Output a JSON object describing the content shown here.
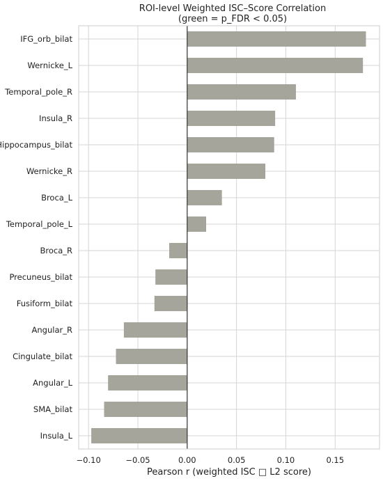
{
  "chart_data": {
    "type": "bar",
    "orientation": "horizontal",
    "title": "ROI-level Weighted ISC–Score Correlation",
    "subtitle": "(green = p_FDR < 0.05)",
    "xlabel": "Pearson r (weighted ISC □ L2 score)",
    "ylabel": "",
    "xlim": [
      -0.11,
      0.195
    ],
    "xticks": [
      -0.1,
      -0.05,
      0.0,
      0.05,
      0.1,
      0.15
    ],
    "xtick_labels": [
      "−0.10",
      "−0.05",
      "0.00",
      "0.05",
      "0.10",
      "0.15"
    ],
    "grid": true,
    "categories": [
      "IFG_orb_bilat",
      "Wernicke_L",
      "Temporal_pole_R",
      "Insula_R",
      "Hippocampus_bilat",
      "Wernicke_R",
      "Broca_L",
      "Temporal_pole_L",
      "Broca_R",
      "Precuneus_bilat",
      "Fusiform_bilat",
      "Angular_R",
      "Cingulate_bilat",
      "Angular_L",
      "SMA_bilat",
      "Insula_L"
    ],
    "values": [
      0.181,
      0.178,
      0.11,
      0.089,
      0.088,
      0.079,
      0.035,
      0.019,
      -0.018,
      -0.032,
      -0.033,
      -0.064,
      -0.072,
      -0.08,
      -0.084,
      -0.097
    ],
    "bar_color": "#a6a59b",
    "bar_edge_color": "#9a998f",
    "zero_line_color": "#333333",
    "grid_color": "#d5d5d5"
  }
}
